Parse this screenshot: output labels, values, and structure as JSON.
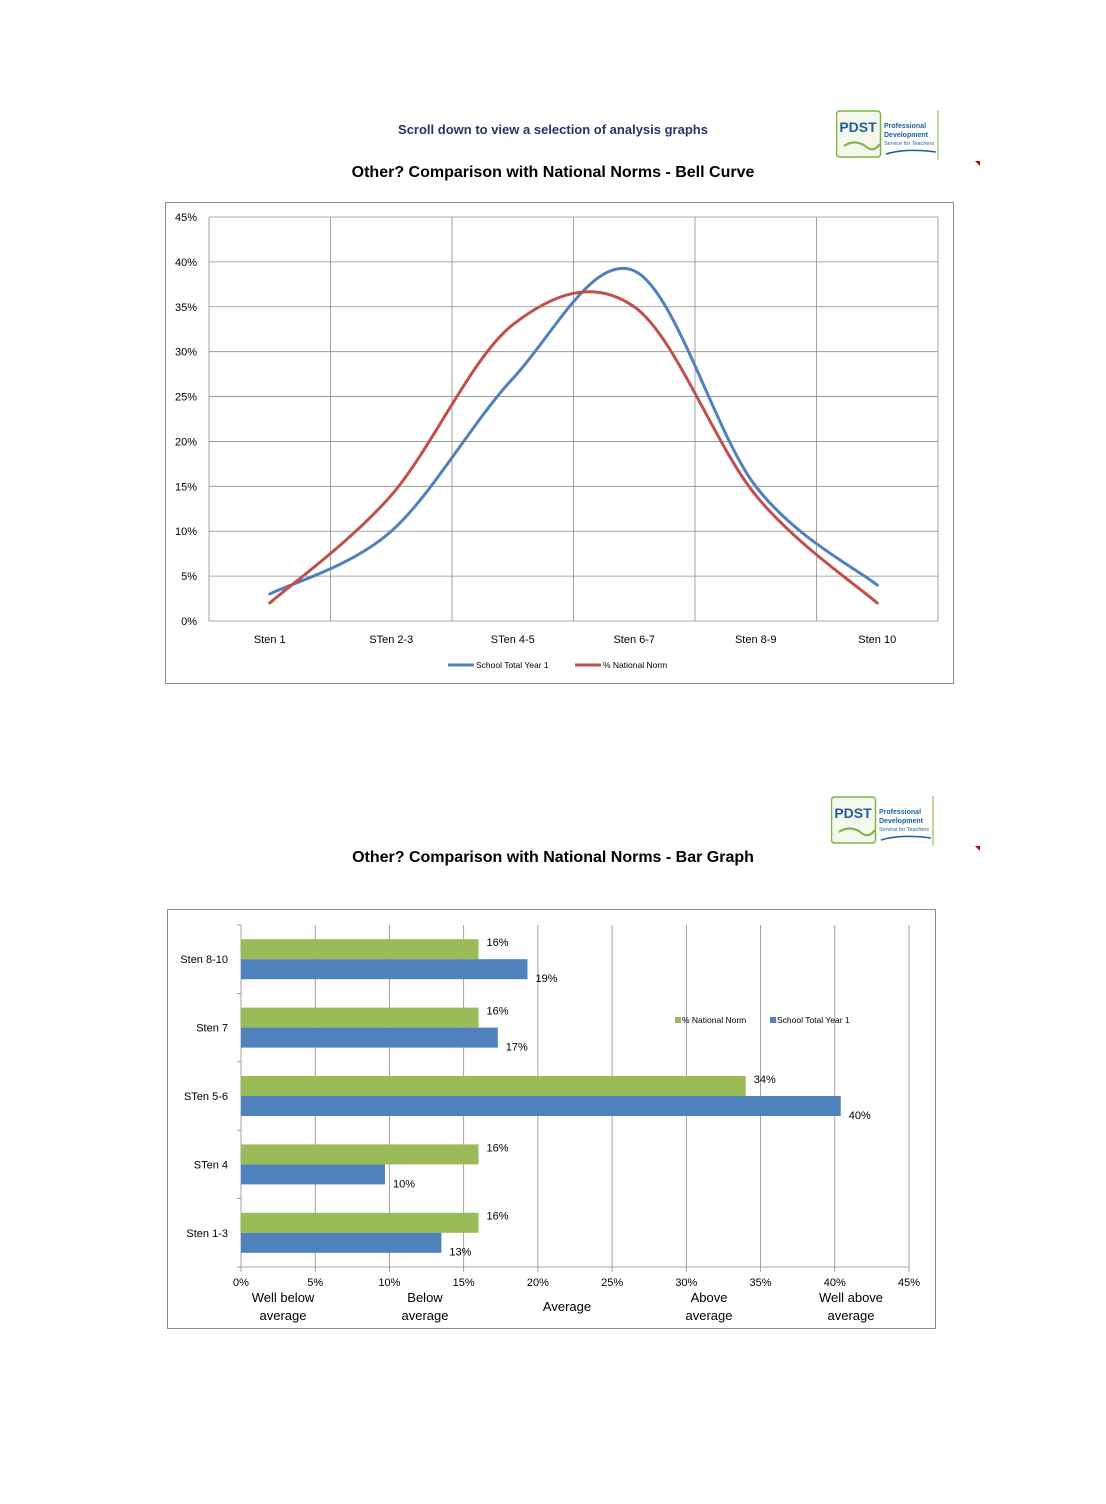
{
  "header": {
    "scroll_note": "Scroll down to view a selection of analysis graphs"
  },
  "logo": {
    "mark": "PDST",
    "line1": "Professional",
    "line2": "Development",
    "line3": "Service for Teachers"
  },
  "colors": {
    "school": "#4f81bd",
    "national_line": "#c0504d",
    "national_bar": "#9bbb59",
    "grid": "#8c8c8c"
  },
  "chart_data": [
    {
      "type": "line",
      "title": "Other? Comparison with National Norms - Bell Curve",
      "categories": [
        "Sten 1",
        "STen 2-3",
        "STen 4-5",
        "Sten 6-7",
        "Sten 8-9",
        "Sten 10"
      ],
      "series": [
        {
          "name": "School Total  Year 1",
          "values": [
            3,
            10,
            27,
            39,
            15,
            4
          ]
        },
        {
          "name": "% National  Norm",
          "values": [
            2,
            14,
            33,
            35,
            14,
            2
          ]
        }
      ],
      "ylim": [
        0,
        45
      ],
      "yticks": [
        "0%",
        "5%",
        "10%",
        "15%",
        "20%",
        "25%",
        "30%",
        "35%",
        "40%",
        "45%"
      ],
      "grid": true,
      "legend": "bottom"
    },
    {
      "type": "bar",
      "orientation": "horizontal",
      "title": "Other? Comparison with National Norms - Bar Graph",
      "categories": [
        "Sten 8-10",
        "Sten 7",
        "STen 5-6",
        "STen 4",
        "Sten 1-3"
      ],
      "series": [
        {
          "name": "% National  Norm",
          "values": [
            16,
            16,
            34,
            16,
            16
          ],
          "labels": [
            "16%",
            "16%",
            "34%",
            "16%",
            "16%"
          ]
        },
        {
          "name": "School Total  Year 1",
          "values": [
            19.3,
            17.3,
            40.4,
            9.7,
            13.5
          ],
          "labels": [
            "19%",
            "17%",
            "40%",
            "10%",
            "13%"
          ]
        }
      ],
      "xlim": [
        0,
        45
      ],
      "xticks": [
        "0%",
        "5%",
        "10%",
        "15%",
        "20%",
        "25%",
        "30%",
        "35%",
        "40%",
        "45%"
      ],
      "bands": [
        "Well below average",
        "Below average",
        "Average",
        "Above average",
        "Well above average"
      ],
      "grid": true,
      "legend": "right"
    }
  ]
}
